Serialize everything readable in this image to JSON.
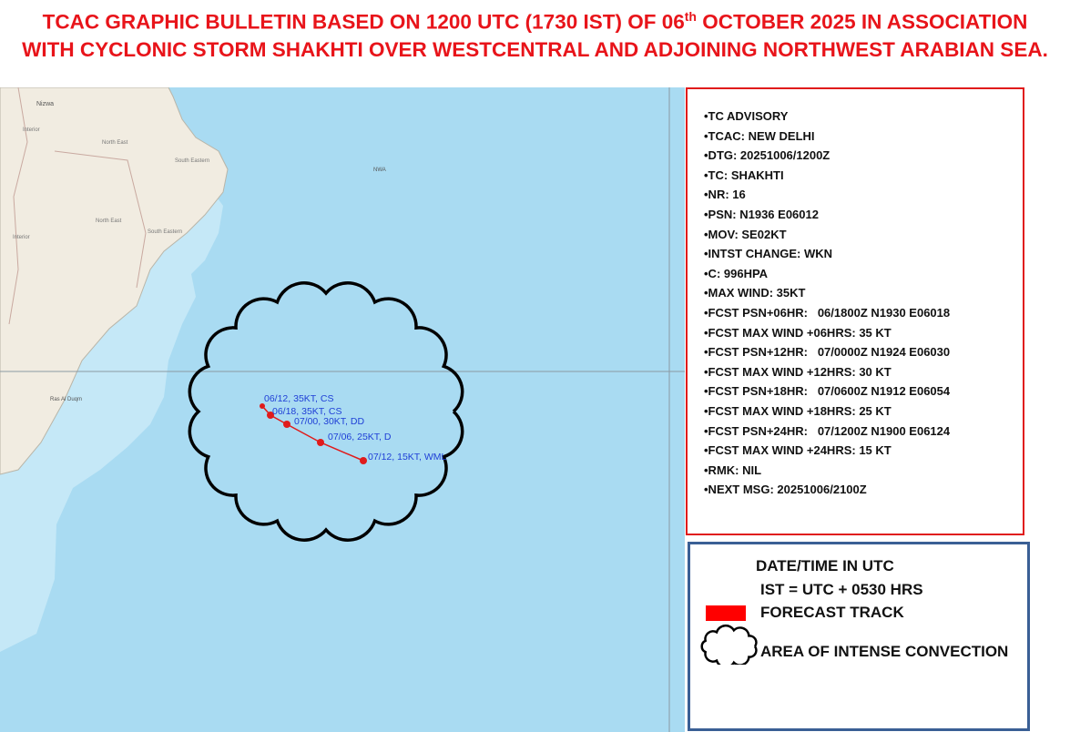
{
  "title": {
    "line1_before": "TCAC GRAPHIC BULLETIN BASED ON 1200 UTC (1730 IST) OF 06",
    "line1_sup": "th",
    "line1_after": " OCTOBER 2025 IN ASSOCIATION",
    "line2": "WITH CYCLONIC STORM SHAKHTI OVER WESTCENTRAL AND ADJOINING NORTHWEST ARABIAN SEA."
  },
  "map_labels": [
    "Nizwa",
    "Interior",
    "North East",
    "South Eastern",
    "North East",
    "South Eastern",
    "Interior",
    "NWA",
    "Ras Al Duqm"
  ],
  "track_labels": [
    "06/12, 35KT, CS",
    "06/18, 35KT, CS",
    "07/00, 30KT, DD",
    "07/06, 25KT, D",
    "07/12, 15KT, WML"
  ],
  "advisory": [
    "•TC ADVISORY",
    "•TCAC: NEW DELHI",
    "•DTG: 20251006/1200Z",
    "•TC: SHAKHTI",
    "•NR: 16",
    "•PSN: N1936 E06012",
    "•MOV: SE02KT",
    "•INTST CHANGE: WKN",
    "•C: 996HPA",
    "•MAX WIND: 35KT",
    "•FCST PSN+06HR:   06/1800Z N1930 E06018",
    "•FCST MAX WIND +06HRS: 35 KT",
    "•FCST PSN+12HR:   07/0000Z N1924 E06030",
    "•FCST MAX WIND +12HRS: 30 KT",
    "•FCST PSN+18HR:   07/0600Z N1912 E06054",
    "•FCST MAX WIND +18HRS: 25 KT",
    "•FCST PSN+24HR:   07/1200Z N1900 E06124",
    "•FCST MAX WIND +24HRS: 15 KT",
    "•RMK: NIL",
    "•NEXT MSG: 20251006/2100Z"
  ],
  "legend": [
    "DATE/TIME IN UTC",
    "IST = UTC + 0530 HRS",
    "FORECAST TRACK",
    "AREA OF INTENSE CONVECTION"
  ]
}
